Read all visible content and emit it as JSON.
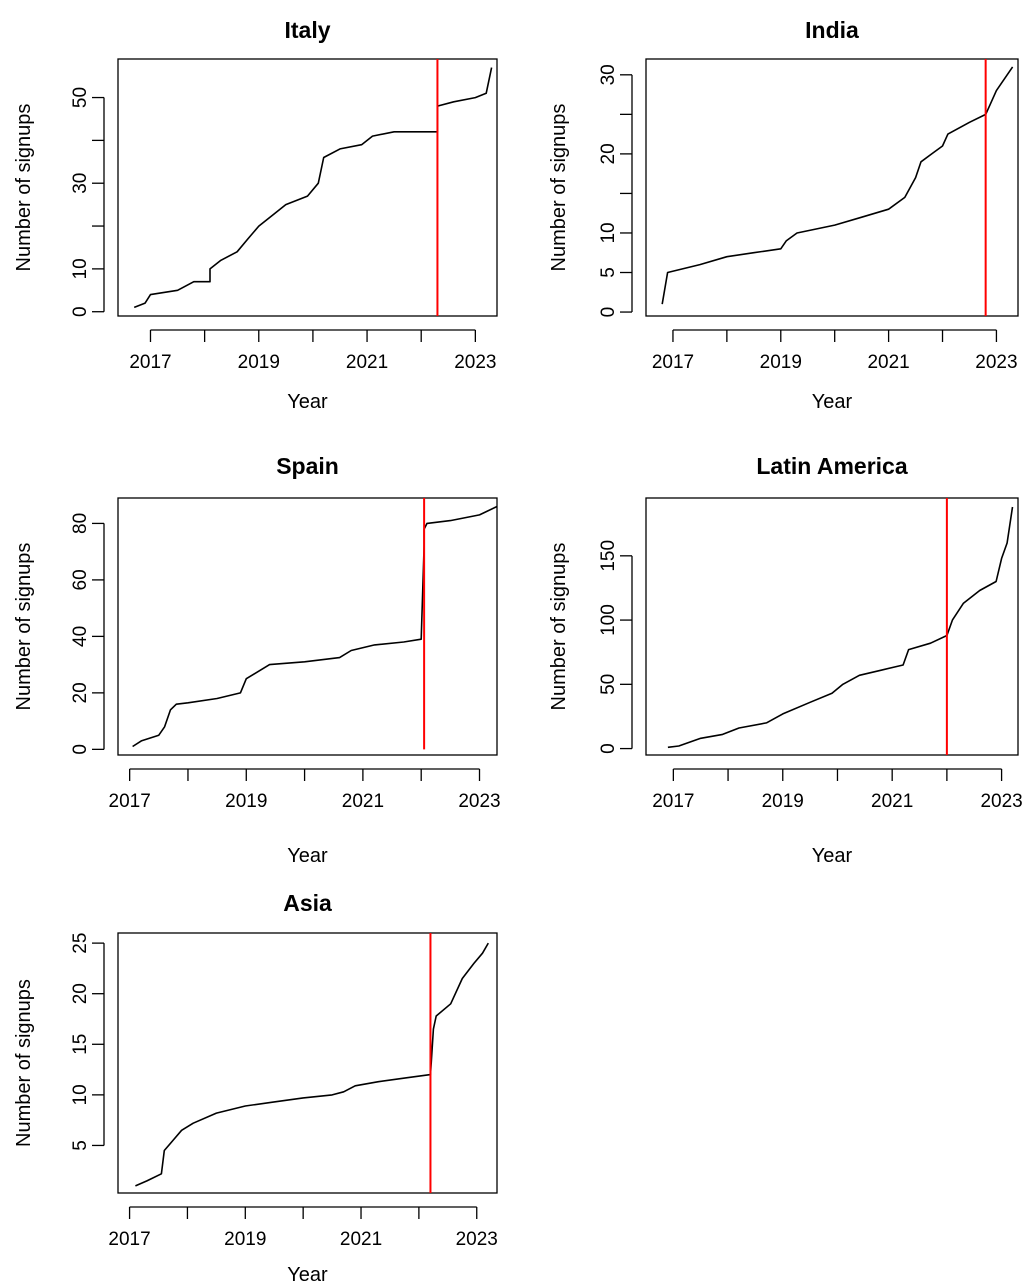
{
  "chart_data": [
    {
      "type": "line",
      "title": "Italy",
      "xlabel": "Year",
      "ylabel": "Number of signups",
      "xlim": [
        2016.4,
        2023.4
      ],
      "ylim": [
        -1,
        59
      ],
      "xticks": [
        2017,
        2018,
        2019,
        2020,
        2021,
        2022,
        2023
      ],
      "xtick_labels": [
        "2017",
        "",
        "2019",
        "",
        "2021",
        "",
        "2023"
      ],
      "yticks": [
        0,
        10,
        20,
        30,
        40,
        50
      ],
      "ytick_labels": [
        "0",
        "10",
        "",
        "30",
        "",
        "50"
      ],
      "grid": false,
      "series": [
        {
          "color": "#000000",
          "x": [
            2016.7,
            2016.9,
            2017.0,
            2017.5,
            2017.8,
            2018.1,
            2018.1,
            2018.3,
            2018.6,
            2018.8,
            2019.0,
            2019.3,
            2019.5,
            2019.9,
            2020.1,
            2020.2,
            2020.5,
            2020.9,
            2021.1,
            2021.5,
            2022.3,
            2022.3,
            2022.6,
            2023.0,
            2023.2,
            2023.3
          ],
          "y": [
            1,
            2,
            4,
            5,
            7,
            7,
            10,
            12,
            14,
            17,
            20,
            23,
            25,
            27,
            30,
            36,
            38,
            39,
            41,
            42,
            42,
            48,
            49,
            50,
            51,
            57
          ]
        }
      ],
      "vline": {
        "x": 2022.3,
        "color": "#ff0000"
      }
    },
    {
      "type": "line",
      "title": "India",
      "xlabel": "Year",
      "ylabel": "Number of signups",
      "xlim": [
        2016.5,
        2023.4
      ],
      "ylim": [
        -0.5,
        32
      ],
      "xticks": [
        2017,
        2018,
        2019,
        2020,
        2021,
        2022,
        2023
      ],
      "xtick_labels": [
        "2017",
        "",
        "2019",
        "",
        "2021",
        "",
        "2023"
      ],
      "yticks": [
        0,
        5,
        10,
        15,
        20,
        25,
        30
      ],
      "ytick_labels": [
        "0",
        "5",
        "10",
        "",
        "20",
        "",
        "30"
      ],
      "grid": false,
      "series": [
        {
          "color": "#000000",
          "x": [
            2016.8,
            2016.9,
            2017.5,
            2018.0,
            2018.5,
            2019.0,
            2019.1,
            2019.3,
            2020.0,
            2020.5,
            2021.0,
            2021.3,
            2021.5,
            2021.6,
            2021.8,
            2022.0,
            2022.1,
            2022.5,
            2022.8,
            2023.0,
            2023.3
          ],
          "y": [
            1,
            5,
            6,
            7,
            7.5,
            8,
            9,
            10,
            11,
            12,
            13,
            14.5,
            17,
            19,
            20,
            21,
            22.5,
            24,
            25,
            28,
            31
          ]
        }
      ],
      "vline": {
        "x": 2022.8,
        "color": "#ff0000"
      }
    },
    {
      "type": "line",
      "title": "Spain",
      "xlabel": "Year",
      "ylabel": "Number of signups",
      "xlim": [
        2016.8,
        2023.3
      ],
      "ylim": [
        -2,
        89
      ],
      "xticks": [
        2017,
        2018,
        2019,
        2020,
        2021,
        2022,
        2023
      ],
      "xtick_labels": [
        "2017",
        "",
        "2019",
        "",
        "2021",
        "",
        "2023"
      ],
      "yticks": [
        0,
        20,
        40,
        60,
        80
      ],
      "ytick_labels": [
        "0",
        "20",
        "40",
        "60",
        "80"
      ],
      "grid": false,
      "series": [
        {
          "color": "#000000",
          "x": [
            2017.05,
            2017.2,
            2017.5,
            2017.6,
            2017.7,
            2017.8,
            2018.0,
            2018.5,
            2018.9,
            2019.0,
            2019.4,
            2020.0,
            2020.6,
            2020.8,
            2021.2,
            2021.7,
            2022.0,
            2022.05,
            2022.05,
            2022.1,
            2022.5,
            2023.0,
            2023.3
          ],
          "y": [
            1,
            3,
            5,
            8,
            14,
            16,
            16.5,
            18,
            20,
            25,
            30,
            31,
            32.5,
            35,
            37,
            38,
            39,
            72,
            78,
            80,
            81,
            83,
            86
          ]
        }
      ],
      "vline": {
        "x": 2022.05,
        "color": "#ff0000",
        "ymin": 0
      }
    },
    {
      "type": "line",
      "title": "Latin America",
      "xlabel": "Year",
      "ylabel": "Number of signups",
      "xlim": [
        2016.5,
        2023.3
      ],
      "ylim": [
        -5,
        195
      ],
      "xticks": [
        2017,
        2018,
        2019,
        2020,
        2021,
        2022,
        2023
      ],
      "xtick_labels": [
        "2017",
        "",
        "2019",
        "",
        "2021",
        "",
        "2023"
      ],
      "yticks": [
        0,
        50,
        100,
        150
      ],
      "ytick_labels": [
        "0",
        "50",
        "100",
        "150"
      ],
      "grid": false,
      "series": [
        {
          "color": "#000000",
          "x": [
            2016.9,
            2017.1,
            2017.5,
            2017.9,
            2018.2,
            2018.7,
            2019.0,
            2019.5,
            2019.9,
            2020.1,
            2020.4,
            2020.8,
            2021.2,
            2021.3,
            2021.7,
            2022.0,
            2022.1,
            2022.3,
            2022.6,
            2022.9,
            2023.0,
            2023.1,
            2023.2
          ],
          "y": [
            1,
            2,
            8,
            11,
            16,
            20,
            27,
            36,
            43,
            50,
            57,
            61,
            65,
            77,
            82,
            88,
            100,
            113,
            123,
            130,
            148,
            160,
            188
          ]
        }
      ],
      "vline": {
        "x": 2022.0,
        "color": "#ff0000"
      }
    },
    {
      "type": "line",
      "title": "Asia",
      "xlabel": "Year",
      "ylabel": "Number of signups",
      "xlim": [
        2016.8,
        2023.35
      ],
      "ylim": [
        0.3,
        26
      ],
      "xticks": [
        2017,
        2018,
        2019,
        2020,
        2021,
        2022,
        2023
      ],
      "xtick_labels": [
        "2017",
        "",
        "2019",
        "",
        "2021",
        "",
        "2023"
      ],
      "yticks": [
        5,
        10,
        15,
        20,
        25
      ],
      "ytick_labels": [
        "5",
        "10",
        "15",
        "20",
        "25"
      ],
      "grid": false,
      "series": [
        {
          "color": "#000000",
          "x": [
            2017.1,
            2017.3,
            2017.55,
            2017.6,
            2017.75,
            2017.9,
            2018.1,
            2018.5,
            2019.0,
            2019.5,
            2020.0,
            2020.5,
            2020.7,
            2020.9,
            2021.3,
            2021.8,
            2022.2,
            2022.25,
            2022.3,
            2022.55,
            2022.75,
            2022.95,
            2023.1,
            2023.2
          ],
          "y": [
            1,
            1.5,
            2.2,
            4.5,
            5.5,
            6.5,
            7.2,
            8.2,
            8.9,
            9.3,
            9.7,
            10.0,
            10.3,
            10.9,
            11.3,
            11.7,
            12,
            16.5,
            17.8,
            19,
            21.5,
            23,
            24,
            25
          ]
        }
      ],
      "vline": {
        "x": 2022.2,
        "color": "#ff0000"
      }
    }
  ]
}
